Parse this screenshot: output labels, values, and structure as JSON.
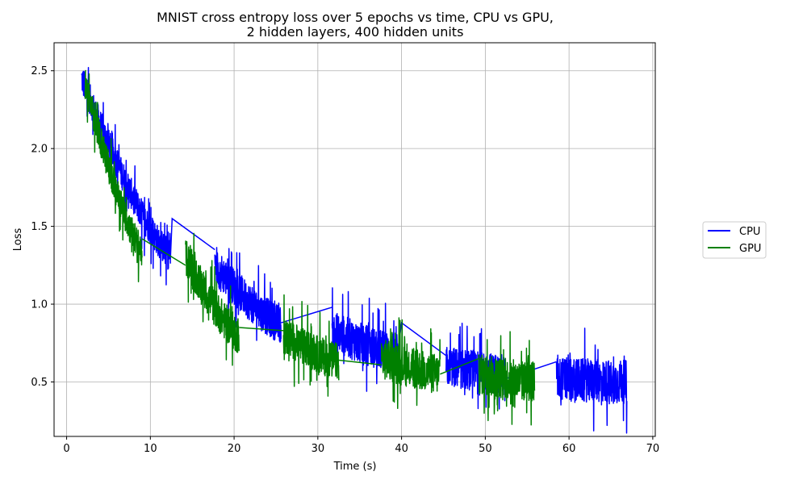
{
  "chart_data": {
    "type": "line",
    "title": "MNIST cross entropy loss over 5 epochs vs time, CPU vs GPU,",
    "subtitle": "2 hidden layers, 400 hidden units",
    "xlabel": "Time (s)",
    "ylabel": "Loss",
    "xlim": [
      -1.5,
      70.3
    ],
    "ylim": [
      0.15,
      2.68
    ],
    "xticks": [
      0,
      10,
      20,
      30,
      40,
      50,
      60,
      70
    ],
    "xtick_labels": [
      "0",
      "10",
      "20",
      "30",
      "40",
      "50",
      "60",
      "70"
    ],
    "yticks": [
      0.5,
      1.0,
      1.5,
      2.0,
      2.5
    ],
    "ytick_labels": [
      "0.5",
      "1.0",
      "1.5",
      "2.0",
      "2.5"
    ],
    "grid": true,
    "legend": {
      "placement": "outside-right",
      "entries": [
        "CPU",
        "GPU"
      ]
    },
    "series": [
      {
        "name": "CPU",
        "color": "#0000ff",
        "segments": [
          {
            "t0": 1.8,
            "t1": 12.4,
            "l0": 2.45,
            "l1": 1.32,
            "amp": 0.1
          },
          {
            "t0": 17.7,
            "t1": 25.6,
            "l0": 1.25,
            "l1": 0.87,
            "amp": 0.12
          },
          {
            "t0": 31.7,
            "t1": 39.5,
            "l0": 0.83,
            "l1": 0.68,
            "amp": 0.13
          },
          {
            "t0": 45.3,
            "t1": 52.4,
            "l0": 0.6,
            "l1": 0.55,
            "amp": 0.13
          },
          {
            "t0": 58.5,
            "t1": 66.9,
            "l0": 0.52,
            "l1": 0.5,
            "amp": 0.14
          }
        ],
        "connectors": [
          [
            [
              12.4,
              1.3
            ],
            [
              12.6,
              1.55
            ],
            [
              17.7,
              1.35
            ]
          ],
          [
            [
              25.6,
              0.88
            ],
            [
              31.7,
              0.98
            ]
          ],
          [
            [
              39.5,
              0.68
            ],
            [
              40.0,
              0.88
            ],
            [
              45.3,
              0.67
            ]
          ],
          [
            [
              52.4,
              0.52
            ],
            [
              58.5,
              0.63
            ]
          ]
        ]
      },
      {
        "name": "GPU",
        "color": "#008000",
        "segments": [
          {
            "t0": 2.2,
            "t1": 9.0,
            "l0": 2.42,
            "l1": 1.35,
            "amp": 0.1
          },
          {
            "t0": 14.2,
            "t1": 20.6,
            "l0": 1.3,
            "l1": 0.8,
            "amp": 0.12
          },
          {
            "t0": 25.9,
            "t1": 32.5,
            "l0": 0.8,
            "l1": 0.63,
            "amp": 0.12
          },
          {
            "t0": 37.6,
            "t1": 44.6,
            "l0": 0.65,
            "l1": 0.55,
            "amp": 0.13
          },
          {
            "t0": 49.2,
            "t1": 55.9,
            "l0": 0.55,
            "l1": 0.5,
            "amp": 0.13
          }
        ],
        "connectors": [
          [
            [
              9.0,
              1.42
            ],
            [
              14.2,
              1.25
            ]
          ],
          [
            [
              20.6,
              0.85
            ],
            [
              25.9,
              0.83
            ]
          ],
          [
            [
              32.5,
              0.64
            ],
            [
              37.6,
              0.61
            ]
          ],
          [
            [
              44.6,
              0.55
            ],
            [
              49.2,
              0.65
            ]
          ]
        ]
      }
    ]
  }
}
